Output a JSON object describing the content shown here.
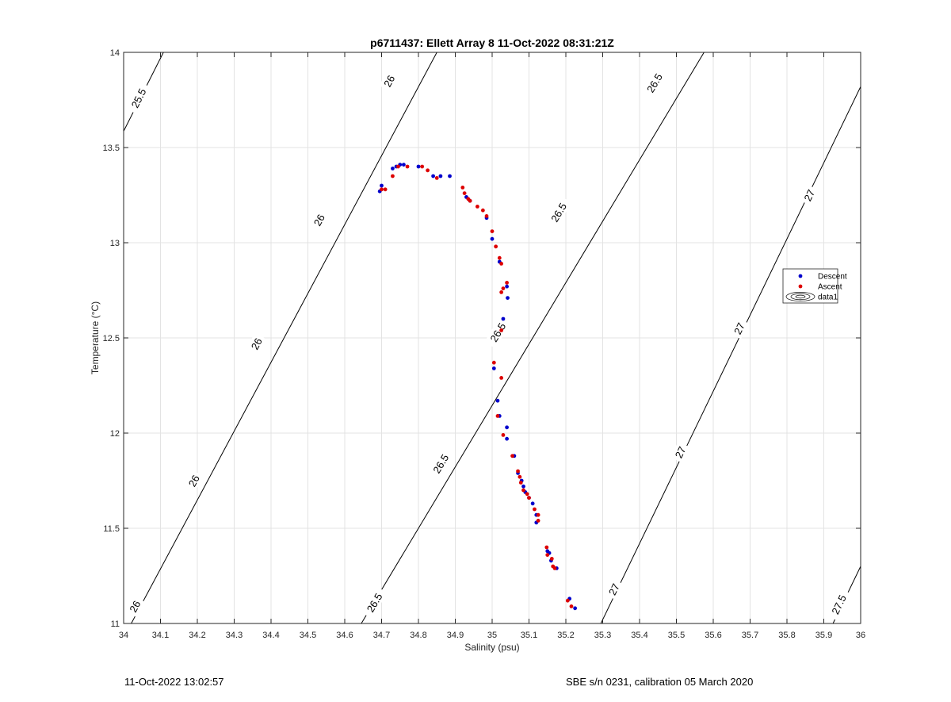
{
  "chart_data": {
    "type": "scatter",
    "title": "p6711437: Ellett Array 8 11-Oct-2022 08:31:21Z",
    "xlabel": "Salinity (psu)",
    "ylabel": "Temperature (°C)",
    "xlim": [
      34,
      36
    ],
    "ylim": [
      11,
      14
    ],
    "xticks": [
      34,
      34.1,
      34.2,
      34.3,
      34.4,
      34.5,
      34.6,
      34.7,
      34.8,
      34.9,
      35,
      35.1,
      35.2,
      35.3,
      35.4,
      35.5,
      35.6,
      35.7,
      35.8,
      35.9,
      36
    ],
    "xtick_labels": [
      "34",
      "34.1",
      "34.2",
      "34.3",
      "34.4",
      "34.5",
      "34.6",
      "34.7",
      "34.8",
      "34.9",
      "35",
      "35.1",
      "35.2",
      "35.3",
      "35.4",
      "35.5",
      "35.6",
      "35.7",
      "35.8",
      "35.9",
      "36"
    ],
    "yticks": [
      11,
      11.5,
      12,
      12.5,
      13,
      13.5,
      14
    ],
    "ytick_labels": [
      "11",
      "11.5",
      "12",
      "12.5",
      "13",
      "13.5",
      "14"
    ],
    "grid": true,
    "legend_position": "right",
    "series": [
      {
        "name": "Descent",
        "color": "#0000cc",
        "points": [
          [
            34.695,
            13.27
          ],
          [
            34.7,
            13.3
          ],
          [
            34.73,
            13.39
          ],
          [
            34.74,
            13.4
          ],
          [
            34.75,
            13.41
          ],
          [
            34.76,
            13.41
          ],
          [
            34.8,
            13.4
          ],
          [
            34.84,
            13.35
          ],
          [
            34.86,
            13.35
          ],
          [
            34.885,
            13.35
          ],
          [
            34.93,
            13.24
          ],
          [
            34.94,
            13.22
          ],
          [
            34.985,
            13.13
          ],
          [
            35.0,
            13.02
          ],
          [
            35.02,
            12.9
          ],
          [
            35.04,
            12.77
          ],
          [
            35.042,
            12.71
          ],
          [
            35.03,
            12.6
          ],
          [
            35.005,
            12.34
          ],
          [
            35.015,
            12.17
          ],
          [
            35.02,
            12.09
          ],
          [
            35.04,
            12.03
          ],
          [
            35.04,
            11.97
          ],
          [
            35.06,
            11.88
          ],
          [
            35.07,
            11.79
          ],
          [
            35.08,
            11.75
          ],
          [
            35.085,
            11.72
          ],
          [
            35.09,
            11.69
          ],
          [
            35.1,
            11.66
          ],
          [
            35.11,
            11.63
          ],
          [
            35.12,
            11.57
          ],
          [
            35.12,
            11.53
          ],
          [
            35.15,
            11.38
          ],
          [
            35.155,
            11.37
          ],
          [
            35.16,
            11.33
          ],
          [
            35.175,
            11.29
          ],
          [
            35.21,
            11.13
          ],
          [
            35.225,
            11.08
          ]
        ]
      },
      {
        "name": "Ascent",
        "color": "#dd0000",
        "points": [
          [
            34.7,
            13.28
          ],
          [
            34.71,
            13.28
          ],
          [
            34.73,
            13.35
          ],
          [
            34.745,
            13.4
          ],
          [
            34.77,
            13.4
          ],
          [
            34.81,
            13.4
          ],
          [
            34.825,
            13.38
          ],
          [
            34.85,
            13.34
          ],
          [
            34.92,
            13.29
          ],
          [
            34.925,
            13.26
          ],
          [
            34.935,
            13.23
          ],
          [
            34.94,
            13.22
          ],
          [
            34.96,
            13.19
          ],
          [
            34.975,
            13.17
          ],
          [
            34.985,
            13.14
          ],
          [
            35.0,
            13.06
          ],
          [
            35.01,
            12.98
          ],
          [
            35.02,
            12.92
          ],
          [
            35.025,
            12.89
          ],
          [
            35.03,
            12.76
          ],
          [
            35.04,
            12.79
          ],
          [
            35.025,
            12.74
          ],
          [
            35.025,
            12.54
          ],
          [
            35.005,
            12.37
          ],
          [
            35.025,
            12.29
          ],
          [
            35.015,
            12.09
          ],
          [
            35.03,
            11.99
          ],
          [
            35.055,
            11.88
          ],
          [
            35.07,
            11.8
          ],
          [
            35.075,
            11.77
          ],
          [
            35.078,
            11.74
          ],
          [
            35.085,
            11.7
          ],
          [
            35.095,
            11.68
          ],
          [
            35.1,
            11.66
          ],
          [
            35.115,
            11.6
          ],
          [
            35.125,
            11.57
          ],
          [
            35.125,
            11.54
          ],
          [
            35.148,
            11.4
          ],
          [
            35.15,
            11.36
          ],
          [
            35.162,
            11.34
          ],
          [
            35.165,
            11.3
          ],
          [
            35.17,
            11.29
          ],
          [
            35.205,
            11.12
          ],
          [
            35.215,
            11.09
          ]
        ]
      }
    ],
    "contours": {
      "name": "data1",
      "color": "#000000",
      "levels": [
        {
          "sigma": 25.5,
          "label": "25.5",
          "points": [
            [
              34.0,
              13.586
            ],
            [
              34.108,
              14.0
            ]
          ],
          "label_points": [
            [
              34.04,
              13.76
            ]
          ]
        },
        {
          "sigma": 26,
          "label": "26",
          "points": [
            [
              34.0,
              10.925
            ],
            [
              34.85,
              14.0
            ]
          ],
          "label_points": [
            [
              34.03,
              11.09
            ],
            [
              34.19,
              11.75
            ],
            [
              34.36,
              12.47
            ],
            [
              34.53,
              13.12
            ],
            [
              34.72,
              13.85
            ]
          ]
        },
        {
          "sigma": 26.5,
          "label": "26.5",
          "points": [
            [
              34.645,
              11.0
            ],
            [
              35.575,
              14.0
            ]
          ],
          "label_points": [
            [
              34.68,
              11.11
            ],
            [
              34.86,
              11.84
            ],
            [
              35.015,
              12.53
            ],
            [
              35.18,
              13.16
            ],
            [
              35.44,
              13.84
            ]
          ]
        },
        {
          "sigma": 27,
          "label": "27",
          "points": [
            [
              35.295,
              11.0
            ],
            [
              36.0,
              13.82
            ]
          ],
          "label_points": [
            [
              35.33,
              11.18
            ],
            [
              35.51,
              11.9
            ],
            [
              35.67,
              12.55
            ],
            [
              35.86,
              13.25
            ]
          ]
        },
        {
          "sigma": 27.5,
          "label": "27.5",
          "points": [
            [
              35.925,
              11.0
            ],
            [
              36.0,
              11.3
            ]
          ],
          "label_points": [
            [
              35.94,
              11.1
            ]
          ]
        }
      ]
    }
  },
  "footer": {
    "timestamp": "11-Oct-2022 13:02:57",
    "sensor_info": "SBE s/n 0231, calibration 05 March 2020"
  }
}
